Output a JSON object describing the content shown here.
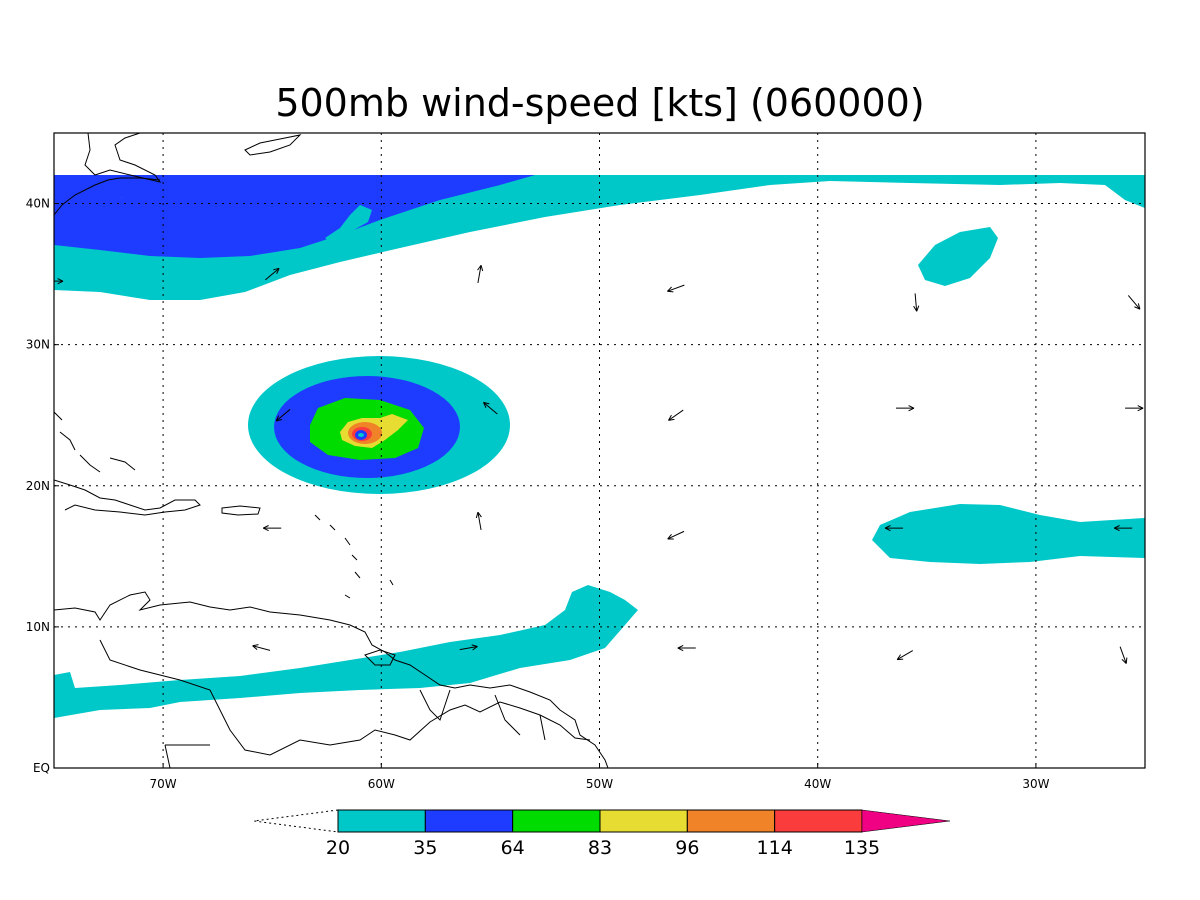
{
  "title": "500mb wind-speed [kts] (060000)",
  "map": {
    "lon_range": [
      -75,
      -25
    ],
    "lat_range": [
      0,
      45
    ],
    "lon_ticks": [
      {
        "lon": -70,
        "label": "70W"
      },
      {
        "lon": -60,
        "label": "60W"
      },
      {
        "lon": -50,
        "label": "50W"
      },
      {
        "lon": -40,
        "label": "40W"
      },
      {
        "lon": -30,
        "label": "30W"
      }
    ],
    "lat_ticks": [
      {
        "lat": 0,
        "label": "EQ"
      },
      {
        "lat": 10,
        "label": "10N"
      },
      {
        "lat": 20,
        "label": "20N"
      },
      {
        "lat": 30,
        "label": "30N"
      },
      {
        "lat": 40,
        "label": "40N"
      }
    ],
    "grid": true
  },
  "colorbar": {
    "levels": [
      "20",
      "35",
      "64",
      "83",
      "96",
      "114",
      "135"
    ],
    "colors": [
      "#00c8c8",
      "#1e3cff",
      "#00dc00",
      "#e6dc32",
      "#f08228",
      "#fa3c3c",
      "#f00082"
    ],
    "extend": "both"
  },
  "shading_colors": {
    "c20": "#00c8c8",
    "c35": "#1e3cff",
    "c64": "#00dc00",
    "c83": "#e6dc32",
    "c96": "#f08228",
    "c114": "#fa3c3c"
  },
  "wind_vectors": [
    {
      "lon": -65,
      "lat": 35,
      "dir": 40
    },
    {
      "lon": -55.5,
      "lat": 35,
      "dir": 80
    },
    {
      "lon": -46.5,
      "lat": 34,
      "dir": 200
    },
    {
      "lon": -35.5,
      "lat": 33,
      "dir": 275
    },
    {
      "lon": -25.5,
      "lat": 33,
      "dir": 310
    },
    {
      "lon": -75,
      "lat": 34.5,
      "dir": 0
    },
    {
      "lon": -64.5,
      "lat": 25,
      "dir": 220
    },
    {
      "lon": -55,
      "lat": 25.5,
      "dir": 140
    },
    {
      "lon": -46.5,
      "lat": 25,
      "dir": 215
    },
    {
      "lon": -36,
      "lat": 25.5,
      "dir": 0
    },
    {
      "lon": -25.5,
      "lat": 25.5,
      "dir": 0
    },
    {
      "lon": -65,
      "lat": 17,
      "dir": 180
    },
    {
      "lon": -55.5,
      "lat": 17.5,
      "dir": 100
    },
    {
      "lon": -46.5,
      "lat": 16.5,
      "dir": 205
    },
    {
      "lon": -36.5,
      "lat": 17,
      "dir": 180
    },
    {
      "lon": -26,
      "lat": 17,
      "dir": 180
    },
    {
      "lon": -65.5,
      "lat": 8.5,
      "dir": 165
    },
    {
      "lon": -56,
      "lat": 8.5,
      "dir": 10
    },
    {
      "lon": -46,
      "lat": 8.5,
      "dir": 180
    },
    {
      "lon": -36,
      "lat": 8,
      "dir": 210
    },
    {
      "lon": -26,
      "lat": 8,
      "dir": 290
    }
  ]
}
